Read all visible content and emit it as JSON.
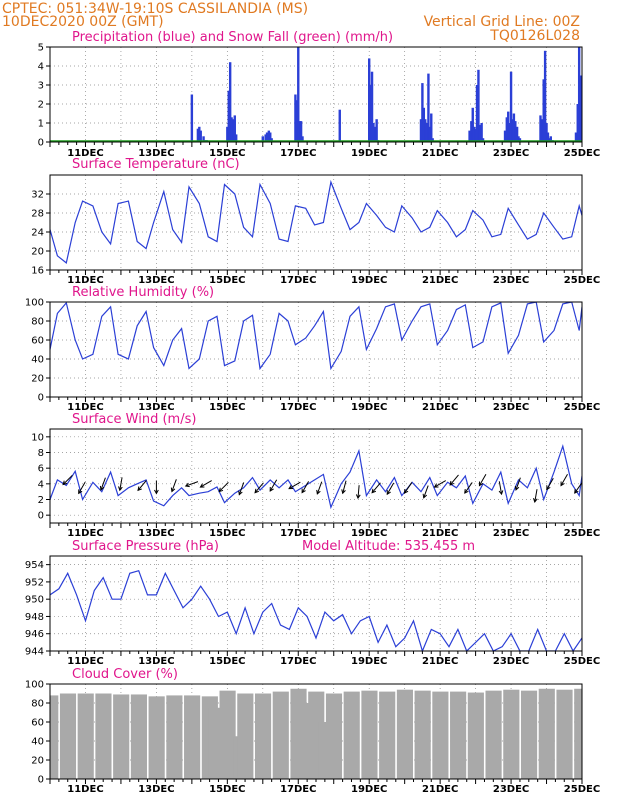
{
  "header": {
    "station": "CPTEC:   051:34W-19:10S   CASSILANDIA (MS)",
    "run": "10DEC2020 00Z (GMT)",
    "grid_note": "Vertical Grid Line: 00Z",
    "code": "TQ0126L028"
  },
  "colors": {
    "header": "#e07a22",
    "title": "#e0168c",
    "line": "#2b3fd6",
    "snow": "#1a9a1a",
    "cloud": "#a9a9a9",
    "arrow": "#000000"
  },
  "chart_data": [
    {
      "id": "precip",
      "type": "bar",
      "title": "Precipitation (blue) and Snow Fall (green) (mm/h)",
      "ylim": [
        0,
        5
      ],
      "yticks": [
        0,
        1,
        2,
        3,
        4,
        5
      ],
      "xlim": [
        0,
        15
      ],
      "xticks": [
        1,
        3,
        5,
        7,
        9,
        11,
        13,
        15
      ],
      "xtick_labels": [
        "11DEC",
        "13DEC",
        "15DEC",
        "17DEC",
        "19DEC",
        "21DEC",
        "23DEC",
        "25DEC"
      ],
      "grid": true,
      "series": [
        {
          "name": "precipitation",
          "x": [
            4.0,
            4.17,
            4.21,
            4.25,
            4.33,
            4.38,
            4.42,
            4.46,
            5.0,
            5.04,
            5.08,
            5.12,
            5.17,
            5.21,
            5.25,
            6.0,
            6.08,
            6.12,
            6.17,
            6.21,
            6.25,
            6.92,
            6.96,
            7.0,
            7.04,
            7.08,
            7.12,
            8.17,
            9.0,
            9.04,
            9.08,
            9.12,
            9.17,
            9.21,
            9.25,
            10.46,
            10.5,
            10.54,
            10.58,
            10.62,
            10.67,
            10.71,
            10.75,
            10.79,
            10.83,
            11.83,
            11.88,
            11.92,
            11.96,
            12.0,
            12.04,
            12.08,
            12.12,
            12.17,
            12.21,
            12.25,
            12.83,
            12.88,
            12.92,
            12.96,
            13.0,
            13.04,
            13.08,
            13.12,
            13.17,
            13.21,
            13.25,
            13.29,
            13.83,
            13.88,
            13.92,
            13.96,
            14.0,
            14.04,
            14.08,
            14.12,
            14.17,
            14.83,
            14.88,
            14.92,
            14.96,
            15.0,
            15.04,
            15.08
          ],
          "y": [
            2.5,
            0.7,
            0.8,
            0.6,
            0.3,
            0.1,
            0.1,
            0.05,
            0.8,
            2.7,
            4.2,
            1.3,
            1.2,
            1.4,
            0.4,
            0.3,
            0.4,
            0.5,
            0.6,
            0.5,
            0.2,
            2.5,
            2.2,
            5.0,
            1.1,
            1.1,
            0.3,
            1.7,
            4.4,
            3.0,
            3.7,
            1.0,
            0.8,
            1.2,
            0.1,
            1.2,
            3.1,
            1.8,
            1.2,
            1.0,
            3.6,
            0.8,
            1.5,
            0.2,
            0.05,
            0.6,
            1.1,
            1.8,
            0.8,
            0.7,
            3.0,
            3.8,
            0.9,
            1.0,
            0.2,
            0.05,
            0.6,
            1.3,
            1.6,
            1.0,
            3.7,
            1.2,
            1.5,
            1.1,
            0.8,
            0.3,
            0.2,
            0.05,
            1.4,
            1.2,
            3.3,
            4.8,
            1.0,
            0.5,
            0.2,
            0.3,
            0.1,
            0.5,
            2.0,
            5.0,
            3.5,
            1.2,
            0.4,
            0.1
          ]
        },
        {
          "name": "snow fall",
          "x": [
            0,
            15
          ],
          "y": [
            0,
            0
          ]
        }
      ]
    },
    {
      "id": "temperature",
      "type": "line",
      "title": "Surface Temperature (nC)",
      "ylim": [
        16,
        36
      ],
      "yticks": [
        16,
        20,
        24,
        28,
        32
      ],
      "xlim": [
        0,
        15
      ],
      "xticks": [
        1,
        3,
        5,
        7,
        9,
        11,
        13,
        15
      ],
      "xtick_labels": [
        "11DEC",
        "13DEC",
        "15DEC",
        "17DEC",
        "19DEC",
        "21DEC",
        "23DEC",
        "25DEC"
      ],
      "grid": true,
      "series": [
        {
          "name": "temperature",
          "x": [
            0.0,
            0.21,
            0.46,
            0.71,
            0.92,
            1.21,
            1.46,
            1.71,
            1.92,
            2.21,
            2.46,
            2.71,
            2.92,
            3.21,
            3.46,
            3.71,
            3.92,
            4.21,
            4.46,
            4.71,
            4.92,
            5.21,
            5.46,
            5.71,
            5.92,
            6.21,
            6.46,
            6.71,
            6.92,
            7.21,
            7.46,
            7.71,
            7.92,
            8.21,
            8.46,
            8.71,
            8.92,
            9.21,
            9.46,
            9.71,
            9.92,
            10.21,
            10.46,
            10.71,
            10.92,
            11.21,
            11.46,
            11.71,
            11.92,
            12.21,
            12.46,
            12.71,
            12.92,
            13.21,
            13.46,
            13.71,
            13.92,
            14.21,
            14.46,
            14.71,
            14.92,
            15.0
          ],
          "y": [
            24.5,
            19.0,
            17.5,
            26.0,
            30.5,
            29.5,
            24.0,
            21.5,
            30.0,
            30.5,
            22.0,
            20.5,
            26.0,
            32.5,
            24.5,
            21.8,
            33.5,
            30.0,
            23.0,
            22.0,
            34.0,
            32.0,
            25.0,
            23.0,
            34.0,
            30.0,
            22.5,
            22.0,
            29.5,
            29.0,
            25.5,
            26.0,
            34.5,
            29.0,
            24.5,
            26.0,
            30.0,
            27.5,
            25.0,
            24.0,
            29.5,
            27.0,
            24.0,
            25.0,
            28.5,
            26.0,
            23.0,
            24.5,
            28.5,
            26.5,
            23.0,
            23.5,
            29.0,
            25.5,
            22.5,
            23.5,
            28.0,
            25.0,
            22.5,
            23.0,
            29.5,
            27.5
          ]
        }
      ]
    },
    {
      "id": "humidity",
      "type": "line",
      "title": "Relative Humidity (%)",
      "ylim": [
        0,
        100
      ],
      "yticks": [
        0,
        20,
        40,
        60,
        80,
        100
      ],
      "xlim": [
        0,
        15
      ],
      "xticks": [
        1,
        3,
        5,
        7,
        9,
        11,
        13,
        15
      ],
      "xtick_labels": [
        "11DEC",
        "13DEC",
        "15DEC",
        "17DEC",
        "19DEC",
        "21DEC",
        "23DEC",
        "25DEC"
      ],
      "grid": true,
      "series": [
        {
          "name": "relative humidity",
          "x": [
            0.0,
            0.21,
            0.46,
            0.71,
            0.92,
            1.21,
            1.46,
            1.71,
            1.92,
            2.21,
            2.46,
            2.71,
            2.92,
            3.21,
            3.46,
            3.71,
            3.92,
            4.21,
            4.46,
            4.71,
            4.92,
            5.21,
            5.46,
            5.71,
            5.92,
            6.21,
            6.46,
            6.71,
            6.92,
            7.21,
            7.46,
            7.71,
            7.92,
            8.21,
            8.46,
            8.71,
            8.92,
            9.21,
            9.46,
            9.71,
            9.92,
            10.21,
            10.46,
            10.71,
            10.92,
            11.21,
            11.46,
            11.71,
            11.92,
            12.21,
            12.46,
            12.71,
            12.92,
            13.21,
            13.46,
            13.71,
            13.92,
            14.21,
            14.46,
            14.71,
            14.92,
            15.0
          ],
          "y": [
            50,
            88,
            99,
            60,
            40,
            45,
            85,
            95,
            45,
            40,
            75,
            90,
            52,
            33,
            60,
            72,
            30,
            40,
            80,
            85,
            33,
            38,
            80,
            86,
            30,
            45,
            88,
            80,
            55,
            62,
            75,
            90,
            30,
            48,
            85,
            95,
            50,
            72,
            95,
            98,
            60,
            80,
            95,
            98,
            55,
            70,
            92,
            97,
            52,
            58,
            95,
            99,
            46,
            65,
            98,
            100,
            58,
            70,
            98,
            100,
            70,
            95
          ]
        }
      ]
    },
    {
      "id": "wind",
      "type": "line",
      "title": "Surface Wind (m/s)",
      "ylim": [
        -1,
        11
      ],
      "yticks": [
        0,
        2,
        4,
        6,
        8,
        10
      ],
      "xlim": [
        0,
        15
      ],
      "xticks": [
        1,
        3,
        5,
        7,
        9,
        11,
        13,
        15
      ],
      "xtick_labels": [
        "11DEC",
        "13DEC",
        "15DEC",
        "17DEC",
        "19DEC",
        "21DEC",
        "23DEC",
        "25DEC"
      ],
      "grid": true,
      "series": [
        {
          "name": "wind speed",
          "x": [
            0.0,
            0.21,
            0.46,
            0.71,
            0.92,
            1.21,
            1.46,
            1.71,
            1.92,
            2.21,
            2.46,
            2.71,
            2.92,
            3.21,
            3.46,
            3.71,
            3.92,
            4.21,
            4.46,
            4.71,
            4.92,
            5.21,
            5.46,
            5.71,
            5.92,
            6.21,
            6.46,
            6.71,
            6.92,
            7.21,
            7.46,
            7.71,
            7.92,
            8.21,
            8.46,
            8.71,
            8.92,
            9.21,
            9.46,
            9.71,
            9.92,
            10.21,
            10.46,
            10.71,
            10.92,
            11.21,
            11.46,
            11.71,
            11.92,
            12.21,
            12.46,
            12.71,
            12.92,
            13.21,
            13.46,
            13.71,
            13.92,
            14.21,
            14.46,
            14.71,
            14.92,
            15.0
          ],
          "y": [
            2.0,
            4.5,
            3.8,
            5.6,
            2.0,
            4.2,
            3.0,
            5.5,
            2.5,
            3.5,
            4.0,
            4.5,
            1.8,
            1.2,
            2.5,
            3.5,
            2.5,
            2.8,
            3.0,
            3.6,
            1.6,
            2.8,
            3.5,
            4.8,
            3.2,
            4.5,
            3.5,
            4.5,
            3.0,
            3.8,
            4.5,
            5.2,
            1.0,
            4.0,
            5.5,
            8.2,
            2.5,
            4.5,
            3.0,
            4.8,
            2.5,
            4.2,
            3.0,
            4.8,
            2.5,
            4.2,
            3.5,
            5.0,
            1.5,
            4.0,
            3.2,
            5.5,
            1.5,
            4.5,
            3.5,
            6.0,
            2.0,
            5.5,
            8.8,
            4.0,
            2.5,
            5.0
          ]
        },
        {
          "name": "wind direction",
          "x": [
            0.5,
            0.9,
            1.5,
            2.0,
            2.6,
            3.0,
            3.5,
            4.0,
            4.4,
            4.9,
            5.4,
            5.9,
            6.3,
            6.9,
            7.2,
            7.6,
            8.3,
            8.7,
            9.2,
            9.6,
            10.1,
            10.6,
            11.0,
            11.4,
            11.8,
            12.2,
            12.7,
            13.2,
            13.7,
            14.1,
            14.5,
            14.9
          ],
          "y": [
            4.5,
            3.5,
            4.0,
            4.0,
            3.8,
            3.6,
            3.8,
            4.0,
            4.0,
            3.6,
            3.4,
            3.5,
            3.8,
            3.8,
            3.6,
            3.5,
            3.6,
            3.0,
            3.5,
            3.4,
            3.5,
            3.0,
            4.0,
            4.5,
            3.5,
            4.5,
            3.5,
            4.0,
            2.5,
            4.0,
            4.5,
            3.5
          ],
          "direction_deg": [
            315,
            330,
            340,
            350,
            320,
            0,
            340,
            290,
            300,
            315,
            340,
            320,
            330,
            300,
            330,
            340,
            345,
            355,
            320,
            330,
            325,
            340,
            300,
            320,
            325,
            330,
            10,
            340,
            350,
            330,
            330,
            325
          ]
        }
      ]
    },
    {
      "id": "pressure",
      "type": "line",
      "title": "Surface Pressure (hPa)",
      "annotation": "Model Altitude: 535.455  m",
      "ylim": [
        944,
        955
      ],
      "yticks": [
        944,
        946,
        948,
        950,
        952,
        954
      ],
      "xlim": [
        0,
        15
      ],
      "xticks": [
        1,
        3,
        5,
        7,
        9,
        11,
        13,
        15
      ],
      "xtick_labels": [
        "11DEC",
        "13DEC",
        "15DEC",
        "17DEC",
        "19DEC",
        "21DEC",
        "23DEC",
        "25DEC"
      ],
      "grid": true,
      "series": [
        {
          "name": "surface pressure",
          "x": [
            0.0,
            0.25,
            0.5,
            0.75,
            1.0,
            1.25,
            1.5,
            1.75,
            2.0,
            2.25,
            2.5,
            2.75,
            3.0,
            3.25,
            3.5,
            3.75,
            4.0,
            4.25,
            4.5,
            4.75,
            5.0,
            5.25,
            5.5,
            5.75,
            6.0,
            6.25,
            6.5,
            6.75,
            7.0,
            7.25,
            7.5,
            7.75,
            8.0,
            8.25,
            8.5,
            8.75,
            9.0,
            9.25,
            9.5,
            9.75,
            10.0,
            10.25,
            10.5,
            10.75,
            11.0,
            11.25,
            11.5,
            11.75,
            12.0,
            12.25,
            12.5,
            12.75,
            13.0,
            13.25,
            13.5,
            13.75,
            14.0,
            14.25,
            14.5,
            14.75,
            15.0
          ],
          "y": [
            950.5,
            951.2,
            953.0,
            950.5,
            947.5,
            951.0,
            952.5,
            950.0,
            950.0,
            953.0,
            953.3,
            950.5,
            950.5,
            953.0,
            951.0,
            949.0,
            950.0,
            951.5,
            950.0,
            948.0,
            948.5,
            946.0,
            949.0,
            946.0,
            948.5,
            949.5,
            947.0,
            946.5,
            949.0,
            948.0,
            945.5,
            948.5,
            947.5,
            948.2,
            946.0,
            947.5,
            948.0,
            945.0,
            947.0,
            944.5,
            945.5,
            947.5,
            944.0,
            946.5,
            946.0,
            944.5,
            946.5,
            943.5,
            945.0,
            946.0,
            944.0,
            944.5,
            946.0,
            943.5,
            944.0,
            946.5,
            942.5,
            944.0,
            946.0,
            943.5,
            945.5
          ]
        }
      ]
    },
    {
      "id": "cloud",
      "type": "bar",
      "title": "Cloud Cover (%)",
      "ylim": [
        0,
        100
      ],
      "yticks": [
        0,
        20,
        40,
        60,
        80,
        100
      ],
      "xlim": [
        0,
        15
      ],
      "xticks": [
        1,
        3,
        5,
        7,
        9,
        11,
        13,
        15
      ],
      "xtick_labels": [
        "11DEC",
        "13DEC",
        "15DEC",
        "17DEC",
        "19DEC",
        "21DEC",
        "23DEC",
        "25DEC"
      ],
      "grid": true,
      "series": [
        {
          "name": "cloud cover",
          "x": [
            0.0,
            0.5,
            1.0,
            1.5,
            2.0,
            2.5,
            3.0,
            3.5,
            4.0,
            4.5,
            4.7,
            5.0,
            5.4,
            5.5,
            6.0,
            6.5,
            7.0,
            7.3,
            7.5,
            7.8,
            8.0,
            8.5,
            9.0,
            9.5,
            10.0,
            10.5,
            11.0,
            11.5,
            12.0,
            12.5,
            13.0,
            13.5,
            14.0,
            14.5,
            15.0
          ],
          "y": [
            88,
            90,
            90,
            90,
            89,
            89,
            87,
            88,
            88,
            87,
            75,
            93,
            45,
            90,
            90,
            92,
            95,
            80,
            92,
            60,
            90,
            92,
            93,
            92,
            94,
            93,
            92,
            92,
            91,
            93,
            94,
            93,
            95,
            94,
            95
          ]
        }
      ]
    }
  ]
}
